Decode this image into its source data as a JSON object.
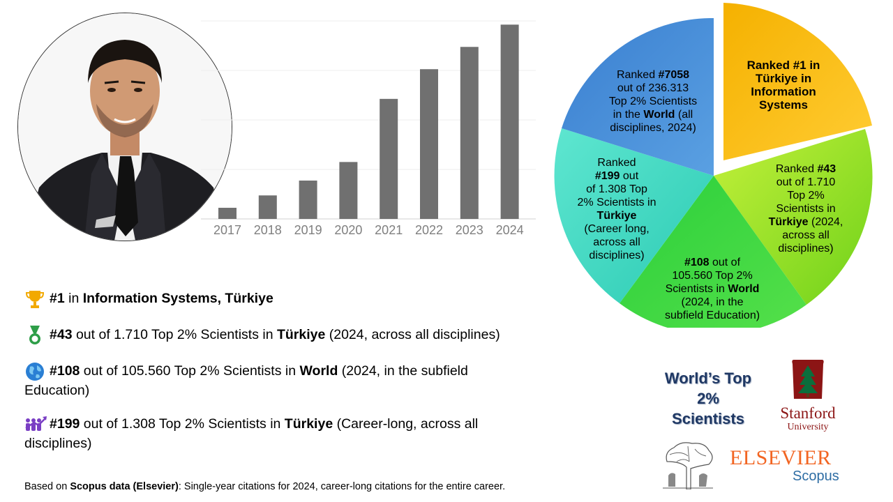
{
  "bar_chart": {
    "categories": [
      "2017",
      "2018",
      "2019",
      "2020",
      "2021",
      "2022",
      "2023",
      "2024"
    ],
    "values": [
      9,
      19,
      31,
      46,
      97,
      121,
      139,
      157
    ],
    "ylim": [
      0,
      160
    ],
    "bar_color": "#707070"
  },
  "pie": {
    "colors": {
      "information_systems": "#f5b100",
      "turkiye_43": "#8fe01e",
      "world_108": "#33cc33",
      "turkiye_199": "#3dd6c0",
      "world_7058": "#4a8ed6"
    },
    "info_sys": {
      "line1": "Ranked #1 in",
      "line2": "Türkiye in",
      "line3": "Information",
      "line4": "Systems"
    },
    "t43": {
      "a": "Ranked ",
      "b": "#43",
      "c": "out of 1.710",
      "d": "Top 2%",
      "e": "Scientists in",
      "f": "Türkiye",
      "g": " (2024,",
      "h": "across all",
      "i": "disciplines)"
    },
    "w108": {
      "a": "#108",
      "b": " out of",
      "c": "105.560 Top 2%",
      "d": "Scientists in ",
      "e": "World",
      "f": "(2024, in the",
      "g": "subfield Education)"
    },
    "t199": {
      "a": "Ranked",
      "b": "#199",
      "c": " out",
      "d": "of 1.308 Top",
      "e": "2% Scientists in",
      "f": "Türkiye",
      "g": "(Career long,",
      "h": "across all",
      "i": "disciplines)"
    },
    "w7058": {
      "a": "Ranked ",
      "b": "#7058",
      "c": "out of 236.313",
      "d": "Top 2% Scientists",
      "e": "in the ",
      "f": "World",
      "g": " (all",
      "h": "disciplines, 2024)"
    }
  },
  "achievements": [
    {
      "icon": "trophy-icon",
      "rank": "#1",
      "mid": " in ",
      "bold": "Information  Systems, Türkiye",
      "rest": ""
    },
    {
      "icon": "medal-icon",
      "rank": "#43",
      "mid": " out of 1.710 Top 2% Scientists in ",
      "bold": "Türkiye",
      "rest": "  (2024, across all disciplines)"
    },
    {
      "icon": "globe-icon",
      "rank": "#108",
      "mid": " out of 105.560 Top 2% Scientists in ",
      "bold": "World",
      "rest": " (2024, in the subfield",
      "rest2": "Education)"
    },
    {
      "icon": "team-growth-icon",
      "rank": "#199",
      "mid": " out of 1.308 Top 2% Scientists in ",
      "bold": "Türkiye",
      "rest": "  (Career-long, across all",
      "rest2": "disciplines)"
    }
  ],
  "footer": {
    "prefix": "Based on ",
    "bold": "Scopus data (Elsevier)",
    "rest": ": Single-year citations for 2024, career-long citations for the entire career."
  },
  "top2": {
    "line1": "World’s Top",
    "line2": "2%",
    "line3": "Scientists"
  },
  "stanford": {
    "word": "Stanford",
    "sub": "University"
  },
  "elsevier": {
    "word": "ELSEVIER",
    "scopus": "Scopus"
  }
}
